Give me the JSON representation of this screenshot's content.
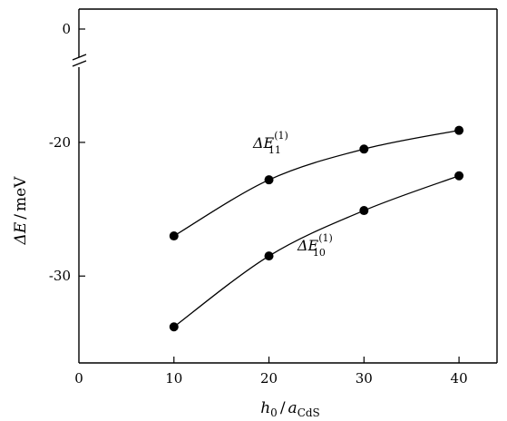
{
  "chart_data": {
    "type": "line",
    "xlabel": {
      "main": "h",
      "main_sub": "0",
      "sep": "/",
      "var": "a",
      "var_sub": "CdS"
    },
    "ylabel": {
      "var": "ΔE",
      "sep": "/",
      "unit": "meV"
    },
    "xlim": [
      0,
      44
    ],
    "ylim": [
      -36.5,
      1.5
    ],
    "y_break": {
      "between": [
        -16,
        -2
      ]
    },
    "x_ticks": [
      0,
      10,
      20,
      30,
      40
    ],
    "x_tick_labels": [
      "0",
      "10",
      "20",
      "30",
      "40"
    ],
    "y_ticks": [
      0,
      -20,
      -30
    ],
    "y_tick_labels": [
      "0",
      "-20",
      "-30"
    ],
    "grid": false,
    "legend": "none",
    "series": [
      {
        "name": "ΔE11(1)",
        "label": {
          "base": "ΔE",
          "sub": "11",
          "sup": "(1)"
        },
        "x": [
          10,
          20,
          30,
          40
        ],
        "y": [
          -27.0,
          -22.8,
          -20.5,
          -19.1
        ]
      },
      {
        "name": "ΔE10(1)",
        "label": {
          "base": "ΔE",
          "sub": "10",
          "sup": "(1)"
        },
        "x": [
          10,
          20,
          30,
          40
        ],
        "y": [
          -33.8,
          -28.5,
          -25.1,
          -22.5
        ]
      }
    ]
  }
}
